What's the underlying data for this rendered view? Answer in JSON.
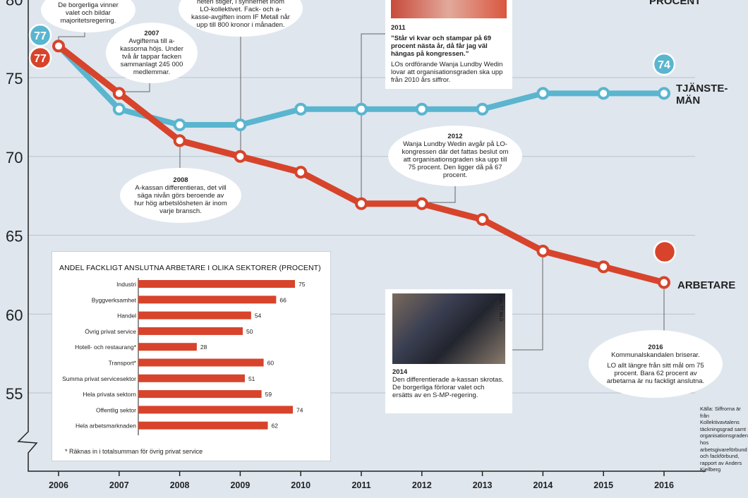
{
  "colors": {
    "background": "#dfe6ee",
    "tjanstemän": "#5ab5cf",
    "arbetare": "#d7442b",
    "grid": "#b8c3ce",
    "bar": "#d7442b"
  },
  "chart_data": [
    {
      "type": "line",
      "x": [
        "2006",
        "2007",
        "2008",
        "2009",
        "2010",
        "2011",
        "2012",
        "2013",
        "2014",
        "2015",
        "2016"
      ],
      "ylim": [
        52,
        79
      ],
      "yticks": [
        55,
        60,
        65,
        70,
        75
      ],
      "series": [
        {
          "name": "TJÄNSTE-MÄN",
          "values": [
            77,
            73,
            72,
            72,
            73,
            73,
            73,
            73,
            74,
            74,
            74
          ],
          "color": "#5ab5cf"
        },
        {
          "name": "ARBETARE",
          "values": [
            77,
            74,
            71,
            70,
            69,
            67,
            67,
            66,
            64,
            63,
            62
          ],
          "color": "#d7442b"
        }
      ],
      "start_badge": "77",
      "end_badge_tjanstemän": "74"
    },
    {
      "type": "bar",
      "title": "ANDEL FACKLIGT ANSLUTNA ARBETARE I OLIKA SEKTORER (PROCENT)",
      "categories": [
        "Industri",
        "Byggverksamhet",
        "Handel",
        "Övrig privat service",
        "Hotell- och restaurang*",
        "Transport*",
        "Summa privat servicesektor",
        "Hela privata sektorn",
        "Offentlig sektor",
        "Hela arbetsmarknaden"
      ],
      "values": [
        75,
        66,
        54,
        50,
        28,
        60,
        51,
        59,
        74,
        62
      ],
      "xlim": [
        0,
        75
      ]
    }
  ],
  "labels": {
    "procent": "PROCENT",
    "tjanste_line1": "TJÄNSTE-",
    "tjanste_line2": "MÄN",
    "arbetare": "ARBETARE",
    "inset_note": "* Räknas in i totalsumman för övrig privat service",
    "source": "Källa: Siffrorna är från Kollektivavtalens täckningsgrad samt organisationsgraden hos arbetsgivareförbund och fackförbund, rapport av Anders Kjellberg"
  },
  "annotations": {
    "a2006": {
      "text": "De borgerliga vinner valet och bildar majoritetsregering."
    },
    "a2007": {
      "year": "2007",
      "text": "Avgifterna till a-kassorna höjs. Under två år tappar facken sammanlagt 245 000 medlemmar."
    },
    "a2009": {
      "text": "heten stiger, i synnerhet inom LO-kollektivet. Fack- och a-kasse-avgiften inom IF Metall når upp till 800 kronor i månaden."
    },
    "a2008": {
      "year": "2008",
      "text": "A-kassan differentieras, det vill säga nivån görs beroende av hur hög arbetslösheten är inom varje bransch."
    },
    "a2011": {
      "year": "2011",
      "quote": "”Står vi kvar och stampar på 69 procent nästa år, då får jag väl hängas på kongressen.”",
      "text": "LOs ordförande Wanja Lundby Wedin lovar att organisationsgraden ska upp från 2010 års siffror."
    },
    "a2012": {
      "year": "2012",
      "text": "Wanja Lundby Wedin avgår på LO-kongressen där det fattas beslut om att organisationsgraden ska upp till 75 procent. Den ligger då på 67 procent."
    },
    "a2014": {
      "year": "2014",
      "text": "Den differentierade a-kassan skrotas. De borgerliga förlorar valet och ersätts av en S-MP-regering.",
      "photo_credit": "Foto: TT BILD"
    },
    "a2016": {
      "year": "2016",
      "text1": "Kommunalskandalen briserar.",
      "text2": "LO allt längre från sitt mål om 75 procent. Bara 62 procent av arbetarna är nu fackligt anslutna."
    }
  }
}
